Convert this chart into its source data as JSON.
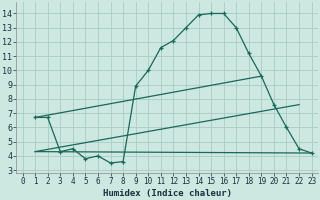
{
  "title": "",
  "xlabel": "Humidex (Indice chaleur)",
  "bg_color": "#cce8e0",
  "grid_color": "#aaccc4",
  "line_color": "#1a6858",
  "xlim": [
    -0.5,
    23.5
  ],
  "ylim": [
    2.8,
    14.8
  ],
  "yticks": [
    3,
    4,
    5,
    6,
    7,
    8,
    9,
    10,
    11,
    12,
    13,
    14
  ],
  "xticks": [
    0,
    1,
    2,
    3,
    4,
    5,
    6,
    7,
    8,
    9,
    10,
    11,
    12,
    13,
    14,
    15,
    16,
    17,
    18,
    19,
    20,
    21,
    22,
    23
  ],
  "line1_x": [
    1,
    2,
    3,
    4,
    5,
    6,
    7,
    8,
    9,
    10,
    11,
    12,
    13,
    14,
    15,
    16,
    17,
    18,
    19,
    20,
    21,
    22,
    23
  ],
  "line1_y": [
    6.7,
    6.7,
    4.3,
    4.5,
    3.8,
    4.0,
    3.5,
    3.6,
    8.9,
    10.0,
    11.6,
    12.1,
    13.0,
    13.9,
    14.0,
    14.0,
    13.0,
    11.2,
    9.6,
    7.6,
    6.0,
    4.5,
    4.2
  ],
  "line2_x": [
    1,
    19
  ],
  "line2_y": [
    6.7,
    9.6
  ],
  "line3_x": [
    1,
    22
  ],
  "line3_y": [
    4.3,
    7.6
  ],
  "line4_x": [
    1,
    23
  ],
  "line4_y": [
    4.3,
    4.2
  ],
  "xlabel_fontsize": 6.5,
  "tick_fontsize": 5.5
}
